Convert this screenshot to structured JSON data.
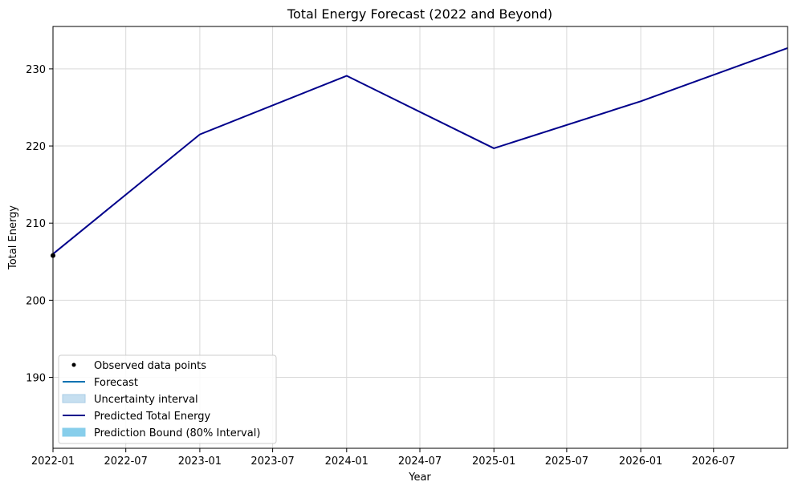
{
  "chart_data": {
    "type": "line",
    "title": "Total Energy Forecast (2022 and Beyond)",
    "xlabel": "Year",
    "ylabel": "Total Energy",
    "xlim": [
      "2022-01-01",
      "2027-01-01"
    ],
    "ylim": [
      180.8,
      235.5
    ],
    "x_ticks": [
      "2022-01",
      "2022-07",
      "2023-01",
      "2023-07",
      "2024-01",
      "2024-07",
      "2025-01",
      "2025-07",
      "2026-01",
      "2026-07"
    ],
    "y_ticks": [
      190,
      200,
      210,
      220,
      230
    ],
    "grid": true,
    "legend_position": "bottom-left",
    "observed": {
      "name": "Observed data points",
      "x": [
        "2022-01-01"
      ],
      "y": [
        205.8
      ]
    },
    "series": [
      {
        "name": "Predicted Total Energy",
        "x": [
          "2022-01-01",
          "2023-01-01",
          "2024-01-01",
          "2025-01-01",
          "2026-01-01",
          "2027-01-01"
        ],
        "y": [
          206.0,
          221.5,
          229.1,
          219.7,
          225.8,
          232.7
        ]
      }
    ],
    "legend": [
      {
        "label": "Observed data points",
        "kind": "dot",
        "color": "#000000"
      },
      {
        "label": "Forecast",
        "kind": "line",
        "color": "#0072B2"
      },
      {
        "label": "Uncertainty interval",
        "kind": "patch",
        "color": "#c6dff0",
        "edge": "#a9cce6"
      },
      {
        "label": "Predicted Total Energy",
        "kind": "line",
        "color": "#00008B"
      },
      {
        "label": "Prediction Bound (80% Interval)",
        "kind": "patch",
        "color": "#87CEEB",
        "edge": "#87CEEB"
      }
    ],
    "colors": {
      "predicted": "#00008B",
      "observed": "#000000",
      "grid": "#d9d9d9"
    }
  }
}
